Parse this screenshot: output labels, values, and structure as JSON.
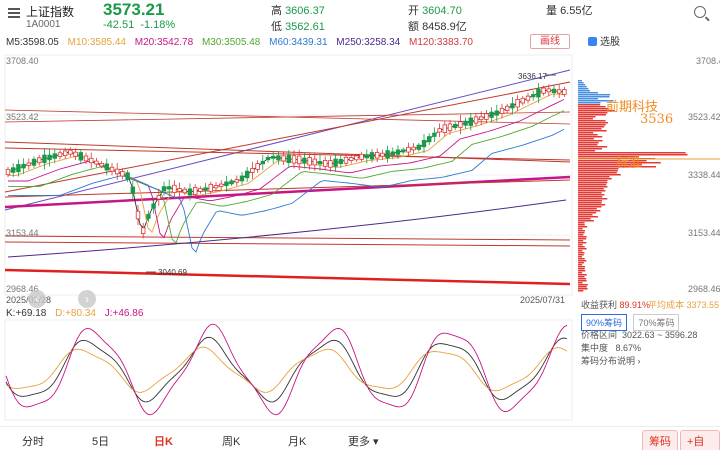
{
  "header": {
    "name": "上证指数",
    "code": "1A0001",
    "price": "3573.21",
    "change": "-42.51",
    "change_pct": "-1.18%",
    "high_label": "高",
    "high": "3606.37",
    "low_label": "低",
    "low": "3562.61",
    "open_label": "开",
    "open": "3604.70",
    "amount_label": "额",
    "amount": "8458.9亿",
    "volume_label": "量",
    "volume": "6.55亿"
  },
  "ma": {
    "m5": "M5:3598.05",
    "m10": "M10:3585.44",
    "m20": "M20:3542.78",
    "m30": "M30:3505.48",
    "m60": "M60:3439.31",
    "m250": "M250:3258.34",
    "m120": "M120:3383.70"
  },
  "toolbar": {
    "draw": "画线",
    "select": "选股"
  },
  "axis": {
    "left_top": "3708.40",
    "left_2": "3523.42",
    "left_3": "3153.44",
    "left_bottom": "2968.46",
    "right_top": "3708.4",
    "right_2": "3523.42",
    "right_3": "3338.44",
    "right_4": "3153.44",
    "right_bottom": "2968.46",
    "date_start": "2025/02/28",
    "date_end": "2025/07/31"
  },
  "annotations": {
    "high_mark": "3636.17",
    "low_mark": "3040.69",
    "hand_1": "前期科技",
    "hand_2": "3536",
    "hand_3": "标准"
  },
  "chip": {
    "profit_label": "收益获利",
    "profit_value": "89.91%",
    "avg_cost_label": "平均成本",
    "avg_cost_value": "3373.55",
    "tab_90": "90%筹码",
    "tab_70": "70%筹码",
    "range_label": "价格区间",
    "range_value": "3022.63 ~ 3596.28",
    "conc_label": "集中度",
    "conc_value": "8.67%",
    "desc": "筹码分布说明"
  },
  "kd": {
    "k": "K:+69.18",
    "d": "D:+80.34",
    "j": "J:+46.86"
  },
  "tabs": [
    "分时",
    "5日",
    "日K",
    "周K",
    "月K",
    "更多"
  ],
  "active_tab": "日K",
  "buttons": {
    "chip": "筹码",
    "watch": "+自选"
  },
  "colors": {
    "up": "#e03434",
    "down": "#1a9a48",
    "m5": "#333333",
    "m10": "#e6a23c",
    "m20": "#c71585",
    "m30": "#52a832",
    "m60": "#2b7bd0",
    "m250": "#4b2a8a",
    "m120": "#d23c3c"
  }
}
